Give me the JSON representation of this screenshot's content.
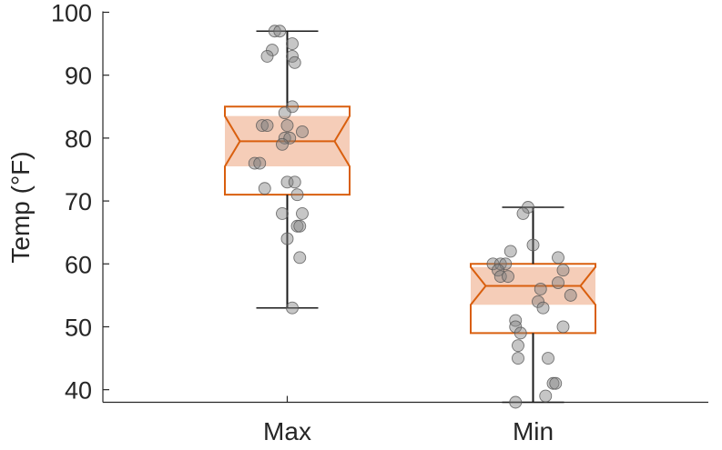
{
  "chart_data": {
    "type": "box",
    "ylabel": "Temp (°F)",
    "ylim": [
      38,
      100
    ],
    "yticks": [
      40,
      50,
      60,
      70,
      80,
      90,
      100
    ],
    "categories": [
      "Max",
      "Min"
    ],
    "grid": false,
    "colors": {
      "box": "#d95f0e",
      "notch_fill": "#f5cdb8",
      "points": "#808080",
      "whisker": "#1a1a1a"
    },
    "series": [
      {
        "category": "Max",
        "q1": 71,
        "median": 79.5,
        "q3": 85,
        "notch_low": 75.5,
        "notch_high": 83.5,
        "whisker_low": 53,
        "whisker_high": 97,
        "points": [
          {
            "x": -0.05,
            "y": 97
          },
          {
            "x": -0.03,
            "y": 97
          },
          {
            "x": 0.02,
            "y": 95
          },
          {
            "x": -0.06,
            "y": 94
          },
          {
            "x": -0.08,
            "y": 93
          },
          {
            "x": 0.02,
            "y": 93
          },
          {
            "x": 0.03,
            "y": 92
          },
          {
            "x": 0.02,
            "y": 85
          },
          {
            "x": -0.01,
            "y": 84
          },
          {
            "x": -0.1,
            "y": 82
          },
          {
            "x": -0.08,
            "y": 82
          },
          {
            "x": 0.0,
            "y": 82
          },
          {
            "x": 0.06,
            "y": 81
          },
          {
            "x": -0.01,
            "y": 80
          },
          {
            "x": 0.01,
            "y": 80
          },
          {
            "x": -0.02,
            "y": 79
          },
          {
            "x": -0.13,
            "y": 76
          },
          {
            "x": -0.11,
            "y": 76
          },
          {
            "x": 0.0,
            "y": 73
          },
          {
            "x": 0.03,
            "y": 73
          },
          {
            "x": -0.09,
            "y": 72
          },
          {
            "x": 0.04,
            "y": 71
          },
          {
            "x": -0.02,
            "y": 68
          },
          {
            "x": 0.06,
            "y": 68
          },
          {
            "x": 0.04,
            "y": 66
          },
          {
            "x": 0.05,
            "y": 66
          },
          {
            "x": 0.0,
            "y": 64
          },
          {
            "x": 0.05,
            "y": 61
          },
          {
            "x": 0.02,
            "y": 53
          }
        ]
      },
      {
        "category": "Min",
        "q1": 49,
        "median": 56.5,
        "q3": 60,
        "notch_low": 53.5,
        "notch_high": 59.5,
        "whisker_low": 38,
        "whisker_high": 69,
        "points": [
          {
            "x": -0.02,
            "y": 69
          },
          {
            "x": -0.04,
            "y": 68
          },
          {
            "x": 0.0,
            "y": 63
          },
          {
            "x": -0.09,
            "y": 62
          },
          {
            "x": 0.1,
            "y": 61
          },
          {
            "x": -0.16,
            "y": 60
          },
          {
            "x": -0.13,
            "y": 60
          },
          {
            "x": -0.11,
            "y": 60
          },
          {
            "x": -0.14,
            "y": 59
          },
          {
            "x": 0.12,
            "y": 59
          },
          {
            "x": -0.13,
            "y": 58
          },
          {
            "x": -0.1,
            "y": 58
          },
          {
            "x": 0.1,
            "y": 57
          },
          {
            "x": 0.03,
            "y": 56
          },
          {
            "x": 0.15,
            "y": 55
          },
          {
            "x": 0.02,
            "y": 54
          },
          {
            "x": 0.04,
            "y": 53
          },
          {
            "x": -0.07,
            "y": 51
          },
          {
            "x": -0.07,
            "y": 50
          },
          {
            "x": 0.12,
            "y": 50
          },
          {
            "x": -0.05,
            "y": 49
          },
          {
            "x": -0.06,
            "y": 47
          },
          {
            "x": -0.06,
            "y": 45
          },
          {
            "x": 0.06,
            "y": 45
          },
          {
            "x": 0.08,
            "y": 41
          },
          {
            "x": 0.09,
            "y": 41
          },
          {
            "x": 0.05,
            "y": 39
          },
          {
            "x": -0.07,
            "y": 38
          }
        ]
      }
    ]
  }
}
